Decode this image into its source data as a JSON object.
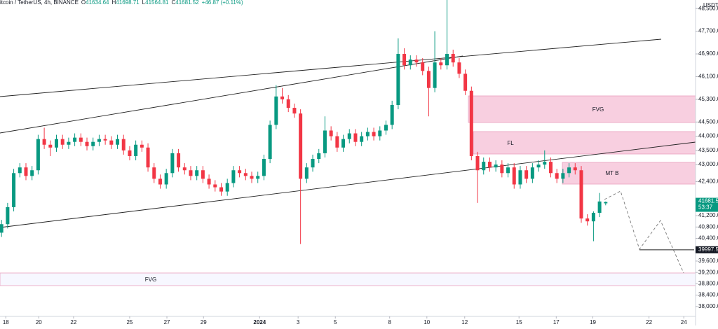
{
  "header": {
    "symbol": "itcoin / TetherUS, 4h, BINANCE",
    "o": "O",
    "h": "H",
    "l": "L",
    "c": "C",
    "change": "+46.87 (+0.11%)"
  },
  "chart_data": {
    "type": "candlestick",
    "y_label": "USDT",
    "up_color": "#089981",
    "down_color": "#f23645",
    "xlim": [
      -0.25,
      113.5
    ],
    "xticks": [
      {
        "value": 0.7,
        "label": "18"
      },
      {
        "value": 6.1,
        "label": "20"
      },
      {
        "value": 11.8,
        "label": "22"
      },
      {
        "value": 21,
        "label": "25"
      },
      {
        "value": 27.1,
        "label": "27"
      },
      {
        "value": 33.1,
        "label": "29"
      },
      {
        "value": 42.3,
        "label": "2024"
      },
      {
        "value": 48.6,
        "label": "3"
      },
      {
        "value": 54.7,
        "label": "5"
      },
      {
        "value": 63.6,
        "label": "8"
      },
      {
        "value": 69.7,
        "label": "10"
      },
      {
        "value": 75.9,
        "label": "12"
      },
      {
        "value": 84.8,
        "label": "15"
      },
      {
        "value": 90.9,
        "label": "17"
      },
      {
        "value": 96.9,
        "label": "19"
      },
      {
        "value": 106.1,
        "label": "22"
      },
      {
        "value": 111.8,
        "label": "24"
      }
    ],
    "ylim": [
      37650,
      48800
    ],
    "yticks": [
      {
        "value": 48500,
        "label": "48,500.00"
      },
      {
        "value": 47700,
        "label": "47,700.00"
      },
      {
        "value": 46900,
        "label": "46,900.00"
      },
      {
        "value": 46100,
        "label": "46,100.00"
      },
      {
        "value": 45300,
        "label": "45,300.00"
      },
      {
        "value": 44500,
        "label": "44,500.00"
      },
      {
        "value": 44000,
        "label": "44,000.00"
      },
      {
        "value": 43500,
        "label": "43,500.00"
      },
      {
        "value": 43000,
        "label": "43,000.00"
      },
      {
        "value": 42400,
        "label": "42,400.00"
      },
      {
        "value": 41200,
        "label": "41,200.00"
      },
      {
        "value": 40800,
        "label": "40,800.00"
      },
      {
        "value": 40400,
        "label": "40,400.00"
      },
      {
        "value": 39600,
        "label": "39,600.00"
      },
      {
        "value": 39200,
        "label": "39,200.00"
      },
      {
        "value": 38800,
        "label": "38,800.00"
      },
      {
        "value": 38400,
        "label": "38,400.00"
      },
      {
        "value": 38000,
        "label": "38,000.00"
      }
    ],
    "open": [
      40600,
      40900,
      41500,
      42700,
      42900,
      42600,
      42800,
      43900,
      43700,
      43600,
      43900,
      43700,
      43800,
      43950,
      43800,
      43650,
      43800,
      43900,
      43850,
      43700,
      43900,
      43500,
      43300,
      43700,
      43600,
      42900,
      42500,
      42300,
      42700,
      43400,
      42900,
      42800,
      42600,
      42800,
      42500,
      42300,
      42200,
      42050,
      42350,
      42800,
      42700,
      42600,
      42500,
      42600,
      43200,
      44400,
      45400,
      45300,
      45000,
      44800,
      42500,
      42900,
      43200,
      43400,
      44200,
      44000,
      43600,
      43900,
      44100,
      43800,
      44000,
      44150,
      44000,
      44200,
      44400,
      45100,
      46900,
      46500,
      46700,
      46600,
      46300,
      45700,
      46600,
      46500,
      46900,
      46600,
      46200,
      45600,
      43300,
      42800,
      43100,
      42900,
      43000,
      42700,
      42900,
      42300,
      42800,
      42500,
      42900,
      43000,
      43100,
      42700,
      42500,
      42700,
      42900,
      42800,
      41100,
      41000,
      41300,
      41634.64
    ],
    "high": [
      41050,
      41650,
      42850,
      43050,
      43050,
      42950,
      44050,
      44300,
      43850,
      44050,
      44050,
      43950,
      44100,
      44100,
      43950,
      43950,
      44050,
      44050,
      44000,
      44050,
      44050,
      43650,
      43850,
      43850,
      43750,
      43050,
      42650,
      42850,
      43550,
      43550,
      43050,
      42950,
      42950,
      42950,
      42650,
      42450,
      42350,
      42500,
      42950,
      42950,
      42850,
      42750,
      42750,
      43350,
      44550,
      45800,
      45700,
      45450,
      45150,
      44950,
      43050,
      43350,
      43550,
      44700,
      44350,
      44150,
      44050,
      44250,
      44250,
      44150,
      44300,
      44300,
      44350,
      44550,
      45250,
      47450,
      47100,
      46850,
      46850,
      46750,
      46450,
      47700,
      46750,
      48800,
      47050,
      46750,
      46350,
      45750,
      43450,
      43250,
      43250,
      43150,
      43150,
      43050,
      43050,
      42950,
      42950,
      43050,
      43150,
      43500,
      43250,
      42850,
      42850,
      43050,
      43050,
      42950,
      41250,
      41350,
      42000,
      41698.71
    ],
    "low": [
      40450,
      40750,
      41350,
      42550,
      42450,
      42450,
      42650,
      43550,
      43300,
      43450,
      43550,
      43550,
      43650,
      43650,
      43500,
      43500,
      43650,
      43700,
      43550,
      43550,
      43350,
      43150,
      43150,
      43450,
      42750,
      42350,
      42150,
      42150,
      42550,
      42750,
      42650,
      42450,
      42450,
      42350,
      42150,
      42050,
      41900,
      41900,
      42200,
      42550,
      42450,
      42350,
      42350,
      42450,
      43050,
      44250,
      45150,
      44850,
      44650,
      40200,
      42350,
      42750,
      43050,
      43250,
      43850,
      43450,
      43450,
      43750,
      43650,
      43650,
      43850,
      43850,
      43850,
      44050,
      44250,
      44950,
      46350,
      46350,
      46450,
      46150,
      44700,
      45550,
      46350,
      46350,
      46450,
      46050,
      45450,
      43150,
      41650,
      42650,
      42750,
      42750,
      42550,
      42550,
      42150,
      42150,
      42350,
      42350,
      42750,
      42850,
      42550,
      42350,
      42350,
      42550,
      42650,
      40950,
      40850,
      40300,
      41150,
      41564.81
    ],
    "close": [
      40900,
      41500,
      42700,
      42900,
      42600,
      42800,
      43900,
      43700,
      43600,
      43900,
      43700,
      43800,
      43950,
      43800,
      43650,
      43800,
      43900,
      43850,
      43700,
      43900,
      43500,
      43300,
      43700,
      43600,
      42900,
      42500,
      42300,
      42700,
      43400,
      42900,
      42800,
      42600,
      42800,
      42500,
      42300,
      42200,
      42050,
      42350,
      42800,
      42700,
      42600,
      42500,
      42600,
      43200,
      44400,
      45400,
      45300,
      45000,
      44800,
      42500,
      42900,
      43200,
      43400,
      44200,
      44000,
      43600,
      43900,
      44100,
      43800,
      44000,
      44150,
      44000,
      44200,
      44400,
      45100,
      46900,
      46500,
      46700,
      46600,
      46300,
      45700,
      46600,
      46500,
      46900,
      46600,
      46200,
      45600,
      43300,
      42800,
      43100,
      42900,
      43000,
      42700,
      42900,
      42300,
      42800,
      42500,
      42900,
      43000,
      43100,
      42700,
      42500,
      42700,
      42900,
      42800,
      41100,
      41000,
      41300,
      41700,
      41681.52
    ],
    "countdown": "53:37",
    "level": 39997.56,
    "zones": [
      "FVG",
      "FL",
      "MT B",
      "FVG"
    ]
  }
}
